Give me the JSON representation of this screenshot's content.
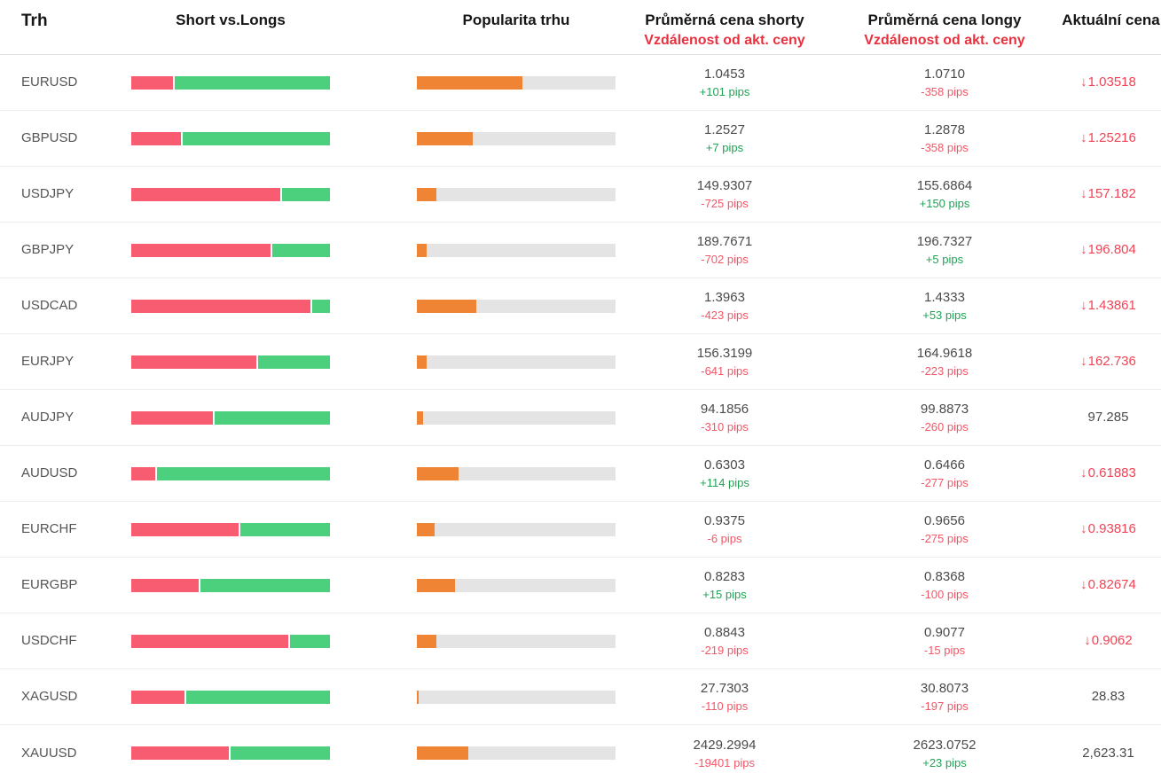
{
  "icons": {
    "down_arrow": "↓"
  },
  "colors": {
    "short_bar": "#f85c70",
    "long_bar": "#4cd07d",
    "popularity_bar": "#ee8434",
    "bar_track": "#e4e4e4",
    "positive_text": "#21a254",
    "negative_text": "#f25767",
    "current_down_text": "#f14355",
    "header_accent": "#e8313f"
  },
  "table": {
    "headers": {
      "market": "Trh",
      "short_vs_longs": "Short vs.Longs",
      "popularity": "Popularita trhu",
      "avg_short_line1": "Průměrná cena shorty",
      "avg_short_line2": "Vzdálenost od akt. ceny",
      "avg_long_line1": "Průměrná cena longy",
      "avg_long_line2": "Vzdálenost od akt. ceny",
      "current_price": "Aktuální cena"
    },
    "rows": [
      {
        "market": "EURUSD",
        "short_pct": 21,
        "popularity_pct": 53,
        "avg_short_price": "1.0453",
        "avg_short_pips": "+101 pips",
        "avg_short_dir": "pos",
        "avg_long_price": "1.0710",
        "avg_long_pips": "-358 pips",
        "avg_long_dir": "neg",
        "current_price": "1.03518",
        "current_dir": "down"
      },
      {
        "market": "GBPUSD",
        "short_pct": 25,
        "popularity_pct": 28,
        "avg_short_price": "1.2527",
        "avg_short_pips": "+7 pips",
        "avg_short_dir": "pos",
        "avg_long_price": "1.2878",
        "avg_long_pips": "-358 pips",
        "avg_long_dir": "neg",
        "current_price": "1.25216",
        "current_dir": "down"
      },
      {
        "market": "USDJPY",
        "short_pct": 75,
        "popularity_pct": 10,
        "avg_short_price": "149.9307",
        "avg_short_pips": "-725 pips",
        "avg_short_dir": "neg",
        "avg_long_price": "155.6864",
        "avg_long_pips": "+150 pips",
        "avg_long_dir": "pos",
        "current_price": "157.182",
        "current_dir": "down"
      },
      {
        "market": "GBPJPY",
        "short_pct": 70,
        "popularity_pct": 5,
        "avg_short_price": "189.7671",
        "avg_short_pips": "-702 pips",
        "avg_short_dir": "neg",
        "avg_long_price": "196.7327",
        "avg_long_pips": "+5 pips",
        "avg_long_dir": "pos",
        "current_price": "196.804",
        "current_dir": "down"
      },
      {
        "market": "USDCAD",
        "short_pct": 90,
        "popularity_pct": 30,
        "avg_short_price": "1.3963",
        "avg_short_pips": "-423 pips",
        "avg_short_dir": "neg",
        "avg_long_price": "1.4333",
        "avg_long_pips": "+53 pips",
        "avg_long_dir": "pos",
        "current_price": "1.43861",
        "current_dir": "down"
      },
      {
        "market": "EURJPY",
        "short_pct": 63,
        "popularity_pct": 5,
        "avg_short_price": "156.3199",
        "avg_short_pips": "-641 pips",
        "avg_short_dir": "neg",
        "avg_long_price": "164.9618",
        "avg_long_pips": "-223 pips",
        "avg_long_dir": "neg",
        "current_price": "162.736",
        "current_dir": "down"
      },
      {
        "market": "AUDJPY",
        "short_pct": 41,
        "popularity_pct": 3,
        "avg_short_price": "94.1856",
        "avg_short_pips": "-310 pips",
        "avg_short_dir": "neg",
        "avg_long_price": "99.8873",
        "avg_long_pips": "-260 pips",
        "avg_long_dir": "neg",
        "current_price": "97.285",
        "current_dir": "none"
      },
      {
        "market": "AUDUSD",
        "short_pct": 12,
        "popularity_pct": 21,
        "avg_short_price": "0.6303",
        "avg_short_pips": "+114 pips",
        "avg_short_dir": "pos",
        "avg_long_price": "0.6466",
        "avg_long_pips": "-277 pips",
        "avg_long_dir": "neg",
        "current_price": "0.61883",
        "current_dir": "down"
      },
      {
        "market": "EURCHF",
        "short_pct": 54,
        "popularity_pct": 9,
        "avg_short_price": "0.9375",
        "avg_short_pips": "-6 pips",
        "avg_short_dir": "neg",
        "avg_long_price": "0.9656",
        "avg_long_pips": "-275 pips",
        "avg_long_dir": "neg",
        "current_price": "0.93816",
        "current_dir": "down"
      },
      {
        "market": "EURGBP",
        "short_pct": 34,
        "popularity_pct": 19,
        "avg_short_price": "0.8283",
        "avg_short_pips": "+15 pips",
        "avg_short_dir": "pos",
        "avg_long_price": "0.8368",
        "avg_long_pips": "-100 pips",
        "avg_long_dir": "neg",
        "current_price": "0.82674",
        "current_dir": "down"
      },
      {
        "market": "USDCHF",
        "short_pct": 79,
        "popularity_pct": 10,
        "avg_short_price": "0.8843",
        "avg_short_pips": "-219 pips",
        "avg_short_dir": "neg",
        "avg_long_price": "0.9077",
        "avg_long_pips": "-15 pips",
        "avg_long_dir": "neg",
        "current_price": "0.9062",
        "current_dir": "down"
      },
      {
        "market": "XAGUSD",
        "short_pct": 27,
        "popularity_pct": 1,
        "avg_short_price": "27.7303",
        "avg_short_pips": "-110 pips",
        "avg_short_dir": "neg",
        "avg_long_price": "30.8073",
        "avg_long_pips": "-197 pips",
        "avg_long_dir": "neg",
        "current_price": "28.83",
        "current_dir": "none"
      },
      {
        "market": "XAUUSD",
        "short_pct": 49,
        "popularity_pct": 26,
        "avg_short_price": "2429.2994",
        "avg_short_pips": "-19401 pips",
        "avg_short_dir": "neg",
        "avg_long_price": "2623.0752",
        "avg_long_pips": "+23 pips",
        "avg_long_dir": "pos",
        "current_price": "2,623.31",
        "current_dir": "none"
      }
    ]
  }
}
